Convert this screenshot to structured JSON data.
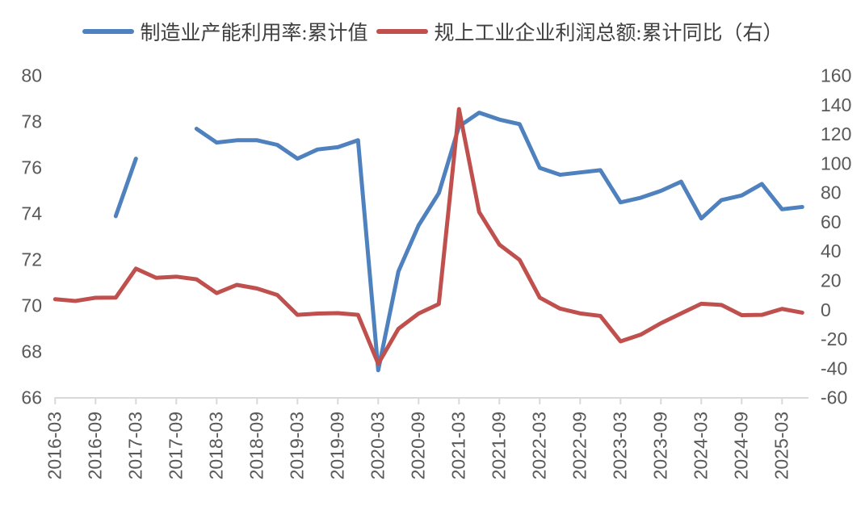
{
  "chart": {
    "background": "#FFFFFF",
    "text_color": "#404040",
    "tick_label_color": "#595959",
    "axis_line_color": "#D9D9D9"
  },
  "chart_data": {
    "type": "line",
    "title": "",
    "grid": false,
    "legend_position": "top",
    "x": [
      "2016-03",
      "2016-06",
      "2016-09",
      "2016-12",
      "2017-03",
      "2017-06",
      "2017-09",
      "2017-12",
      "2018-03",
      "2018-06",
      "2018-09",
      "2018-12",
      "2019-03",
      "2019-06",
      "2019-09",
      "2019-12",
      "2020-03",
      "2020-06",
      "2020-09",
      "2020-12",
      "2021-03",
      "2021-06",
      "2021-09",
      "2021-12",
      "2022-03",
      "2022-06",
      "2022-09",
      "2022-12",
      "2023-03",
      "2023-06",
      "2023-09",
      "2023-12",
      "2024-03",
      "2024-06",
      "2024-09",
      "2024-12",
      "2025-03",
      "2025-06"
    ],
    "x_tick_labels": [
      "2016-03",
      "2016-09",
      "2017-03",
      "2017-09",
      "2018-03",
      "2018-09",
      "2019-03",
      "2019-09",
      "2020-03",
      "2020-09",
      "2021-03",
      "2021-09",
      "2022-03",
      "2022-09",
      "2023-03",
      "2023-09",
      "2024-03",
      "2024-09",
      "2025-03"
    ],
    "left_axis": {
      "min": 66,
      "max": 80,
      "step": 2,
      "ticks": [
        80,
        78,
        76,
        74,
        72,
        70,
        68,
        66
      ]
    },
    "right_axis": {
      "min": -60,
      "max": 160,
      "step": 20,
      "ticks": [
        160,
        140,
        120,
        100,
        80,
        60,
        40,
        20,
        0,
        -20,
        -40,
        -60
      ]
    },
    "series": [
      {
        "name": "制造业产能利用率:累计值",
        "axis": "left",
        "color": "#4E81BD",
        "values": [
          null,
          null,
          null,
          73.9,
          76.4,
          null,
          null,
          77.7,
          77.1,
          77.2,
          77.2,
          77.0,
          76.4,
          76.8,
          76.9,
          77.2,
          67.2,
          71.5,
          73.5,
          74.9,
          77.8,
          78.4,
          78.1,
          77.9,
          76.0,
          75.7,
          75.8,
          75.9,
          74.5,
          74.7,
          75.0,
          75.4,
          73.8,
          74.6,
          74.8,
          75.3,
          74.2,
          74.3
        ]
      },
      {
        "name": "规上工业企业利润总额:累计同比（右）",
        "axis": "right",
        "color": "#C0504D",
        "values": [
          7.4,
          6.2,
          8.4,
          8.5,
          28.3,
          22.0,
          22.8,
          21.0,
          11.6,
          17.2,
          14.7,
          10.3,
          -3.3,
          -2.4,
          -2.1,
          -3.3,
          -36.7,
          -12.8,
          -2.4,
          4.1,
          137.3,
          66.9,
          44.7,
          34.3,
          8.5,
          1.0,
          -2.3,
          -4.0,
          -21.4,
          -16.8,
          -9.0,
          -2.3,
          4.3,
          3.5,
          -3.5,
          -3.3,
          0.8,
          -1.8
        ]
      }
    ]
  }
}
